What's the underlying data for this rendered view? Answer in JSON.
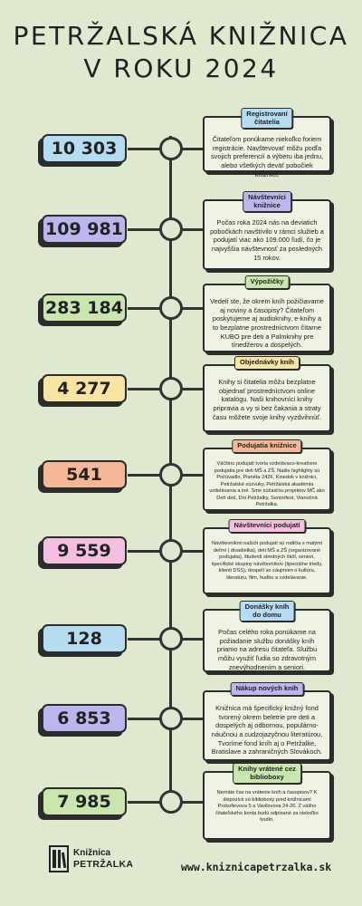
{
  "header": {
    "title_line1": "PETRŽALSKÁ KNIŽNICA",
    "title_line2": "V ROKU 2024"
  },
  "colors": {
    "background": "#dfe9cf",
    "blue": "#b6dcf2",
    "purple": "#bcb6ef",
    "green": "#c8e6ad",
    "yellow": "#f7e3a2",
    "orange": "#f4b896",
    "pink": "#f4bfe0"
  },
  "items": [
    {
      "stat": "10 303",
      "color": "#b6dcf2",
      "title": "Registrovaní\nčitatelia",
      "text": "Čitateľom ponúkame niekoľko foriem registrácie. Navštevovať môžu podľa svojich preferencií a výberu iba jednu, alebo všetkých deväť pobočiek knižnice",
      "small": false
    },
    {
      "stat": "109 981",
      "color": "#bcb6ef",
      "title": "Návštevníci\nknižnice",
      "text": "Počas roka 2024 nás na deviatich pobočkách navštívilo v rámci služieb a podujatí viac ako 109.000 ľudí, čo je najvyššia návštevnosť za posledných 15 rokov.",
      "small": false
    },
    {
      "stat": "283 184",
      "color": "#c8e6ad",
      "title": "Výpožičky",
      "text": "Vedeli ste, že okrem kníh požičiavame aj noviny a časopisy? Čitateľom poskytujeme aj audioknihy, e-knihy a to bezplatne prostredníctvom čítarne KUBO pre deti a Palmknihy pre tínedžerov a dospelých.",
      "small": false
    },
    {
      "stat": "4 277",
      "color": "#f7e3a2",
      "title": "Objednávky kníh",
      "text": "Knihy si čitatelia môžu bezplatne objednať prostredníctvom online katalógu. Naši knihovníci knihy pripravia a vy si bez čakania a straty času môžete svoje knihy vyzdvihnúť.",
      "small": false
    },
    {
      "stat": "541",
      "color": "#f4b896",
      "title": "Podujatia knižnice",
      "text": "Väčšinu podujatí tvoria vzdelávaco-kreatívne podujatia pre deti MŠ a ZŠ. Našie highlighty sú Počúvadlo, Planéta 2426, Kinedok v knižnici, Petržalské súzvuky, Petržalská akadémia vzdelávania a iné. Sme súčasťou projektov MČ ako Deň detí, Dni Petržalky, Seniorfest, Vianočná Petržalka.",
      "small": true
    },
    {
      "stat": "9 559",
      "color": "#f4bfe0",
      "title": "Návštevníci podujatí",
      "text": "Návštevníkmi našich podujatí sú rodičia s malými deťmi ( divadielka), deti MŠ a ZŠ (organizované podujatia), študenti stredných škôl, seniori, špecifické skupiny návštevníkov (špeciálne triedy, klienti DSS), dospelí so záujmom o kultúru, literatúru, film, hudbu a vzdelávanie.",
      "small": true
    },
    {
      "stat": "128",
      "color": "#b6dcf2",
      "title": "Donášky kníh\ndo domu",
      "text": "Počas celého roka ponúkame na požiadanie službu donášky kníh priamo na adresu čitateľa. Službu môžu využiť ľudia so zdravotným znevýhodnením a seniori.",
      "small": false
    },
    {
      "stat": "6 853",
      "color": "#bcb6ef",
      "title": "Nákup nových kníh",
      "text": "Knižnica má špecifický knižný fond tvorený okrem beletrie pre deti a dospelých aj odbornou, populárno-náučnou a cudzojazyčnou literatúrou. Tvoríme fond kníh aj o Petržalke, Bratislave a zahraničných Slovákoch.",
      "small": false
    },
    {
      "stat": "7 985",
      "color": "#c8e6ad",
      "title": "Knihy vrátené cez\nbiblioboxy",
      "text": "Nemáte čas na vrátenie kníh a časopisov? K dispozícii sú biblioboxy pred knižnicami Prokofievova 5 a Vavilovova 24-26. Z vášho čitateľského konta budú odpísané za niekoľko hodín.",
      "small": true
    }
  ],
  "footer": {
    "logo_line1": "Knižnica",
    "logo_line2": "PETRŽALKA",
    "logo_icon": "library-books-icon",
    "url": "www.kniznicapetrzalka.sk"
  }
}
